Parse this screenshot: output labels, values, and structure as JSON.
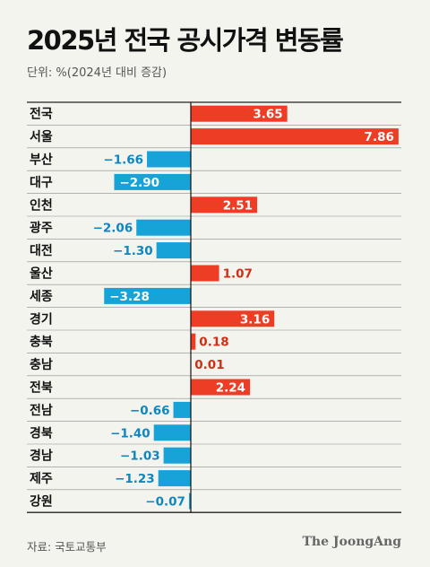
{
  "title": "2025년 전국 공시가격 변동률",
  "unit_note": "단위: %(2024년 대비 증감)",
  "source": "자료: 국토교통부",
  "brand": "The JoongAng",
  "colors": {
    "positive": "#ee3d25",
    "negative": "#17a3d8",
    "positive_text": "#d02e15",
    "negative_text": "#0e86bf"
  },
  "chart_data": {
    "type": "bar",
    "orientation": "horizontal",
    "categories": [
      "전국",
      "서울",
      "부산",
      "대구",
      "인천",
      "광주",
      "대전",
      "울산",
      "세종",
      "경기",
      "충북",
      "충남",
      "전북",
      "전남",
      "경북",
      "경남",
      "제주",
      "강원"
    ],
    "values": [
      3.65,
      7.86,
      -1.66,
      -2.9,
      2.51,
      -2.06,
      -1.3,
      1.07,
      -3.28,
      3.16,
      0.18,
      0.01,
      2.24,
      -0.66,
      -1.4,
      -1.03,
      -1.23,
      -0.07
    ],
    "labels": [
      "3.65",
      "7.86",
      "−1.66",
      "−2.90",
      "2.51",
      "−2.06",
      "−1.30",
      "1.07",
      "−3.28",
      "3.16",
      "0.18",
      "0.01",
      "2.24",
      "−0.66",
      "−1.40",
      "−1.03",
      "−1.23",
      "−0.07"
    ],
    "xlim": [
      -3.6,
      8.0
    ],
    "grid": false,
    "legend": "none"
  }
}
